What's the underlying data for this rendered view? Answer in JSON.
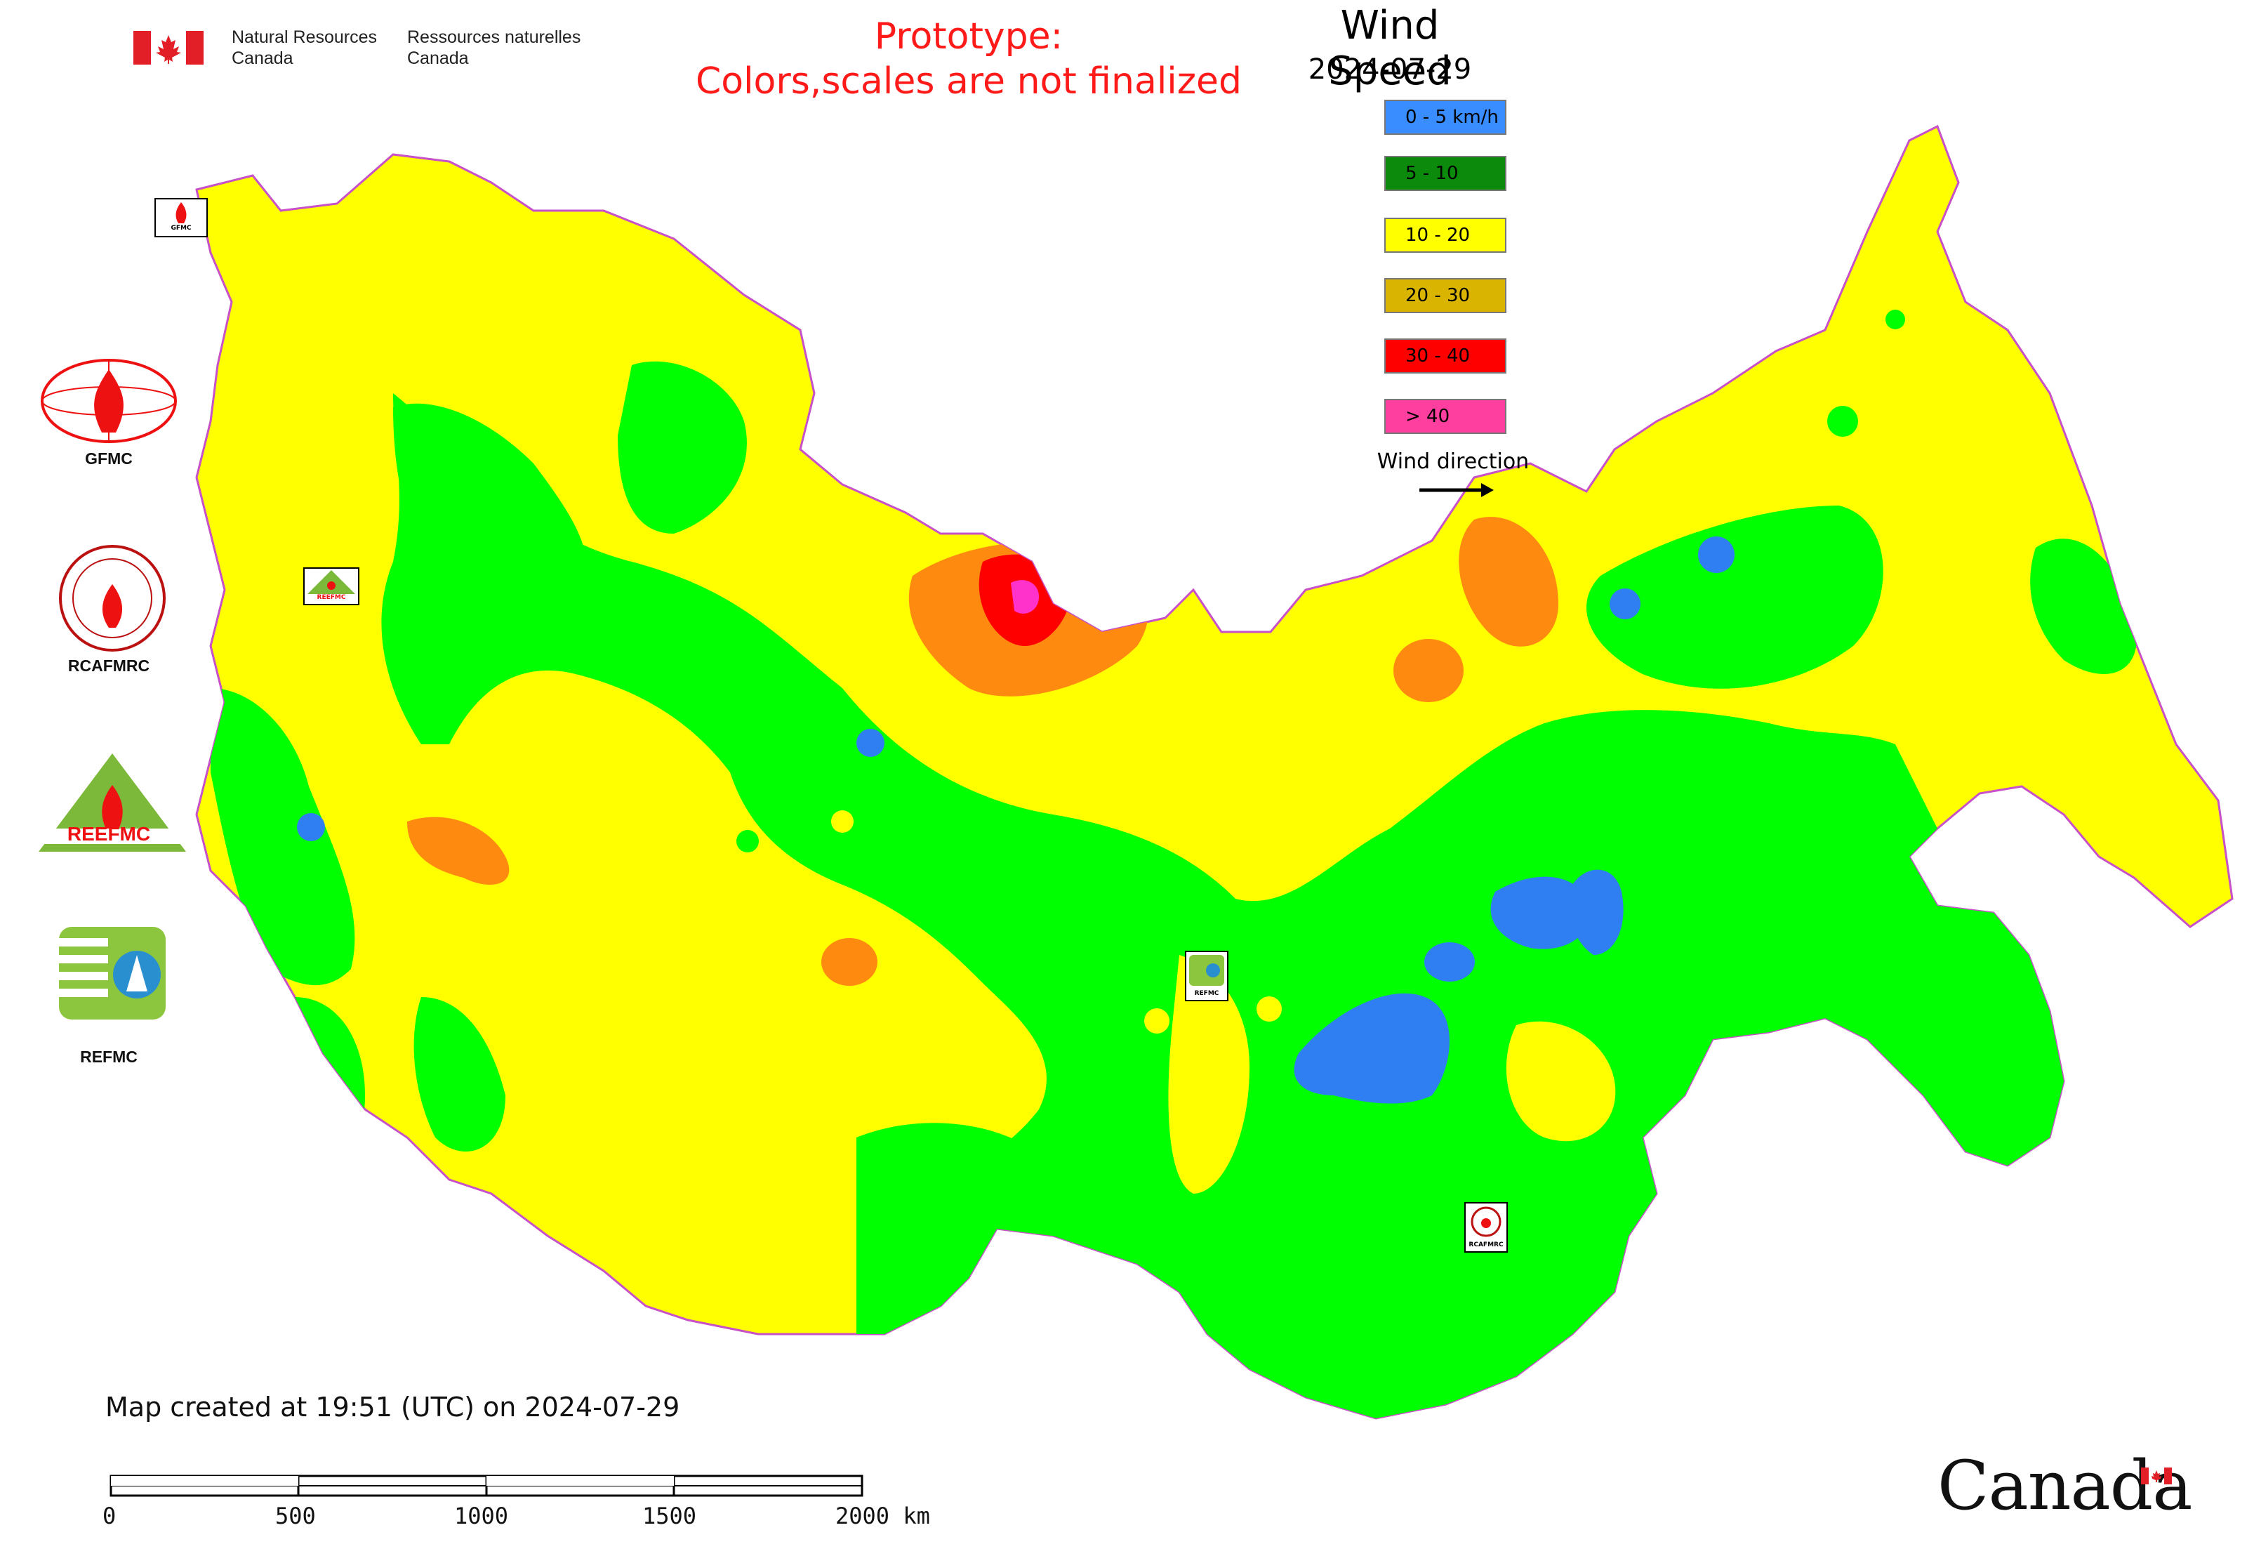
{
  "header": {
    "department_en_line1": "Natural Resources",
    "department_en_line2": "Canada",
    "department_fr_line1": "Ressources naturelles",
    "department_fr_line2": "Canada"
  },
  "prototype_note": {
    "line1": "Prototype:",
    "line2": "Colors,scales are not finalized"
  },
  "legend": {
    "title": "Wind Speed",
    "date": "2024-07-29",
    "items": [
      {
        "label": "0 - 5 km/h",
        "color": "#3a8dff"
      },
      {
        "label": "5 - 10",
        "color": "#0b8a0b"
      },
      {
        "label": "10 - 20",
        "color": "#ffff00"
      },
      {
        "label": "20 - 30",
        "color": "#d9b400"
      },
      {
        "label": "30 - 40",
        "color": "#ff0000"
      },
      {
        "label": "> 40",
        "color": "#ff3fa0"
      }
    ],
    "wind_direction_label": "Wind direction"
  },
  "map_colors": {
    "low": "#2f7ff2",
    "green": "#00ff00",
    "yellow": "#ffff00",
    "orange": "#ff8a10",
    "red": "#ff0000",
    "magenta": "#ff33cc",
    "water": "#ffffff",
    "border": "#c850c8"
  },
  "logos": [
    {
      "label": "GFMC",
      "icon": "gfmc-logo-icon"
    },
    {
      "label": "RCAFMRC",
      "icon": "rcafmrc-logo-icon"
    },
    {
      "label": "REEFMC",
      "icon": "reefmc-logo-icon"
    },
    {
      "label": "REFMC",
      "icon": "refmc-logo-icon"
    }
  ],
  "map_markers": [
    {
      "label": "GFMC"
    },
    {
      "label": "REEFMC"
    },
    {
      "label": "REFMC"
    },
    {
      "label": "RCAFMRC"
    }
  ],
  "created_note": "Map created at 19:51 (UTC) on 2024-07-29",
  "scale_bar": {
    "ticks": [
      "0",
      "500",
      "1000",
      "1500",
      "2000 km"
    ]
  },
  "wordmark": "Canada"
}
